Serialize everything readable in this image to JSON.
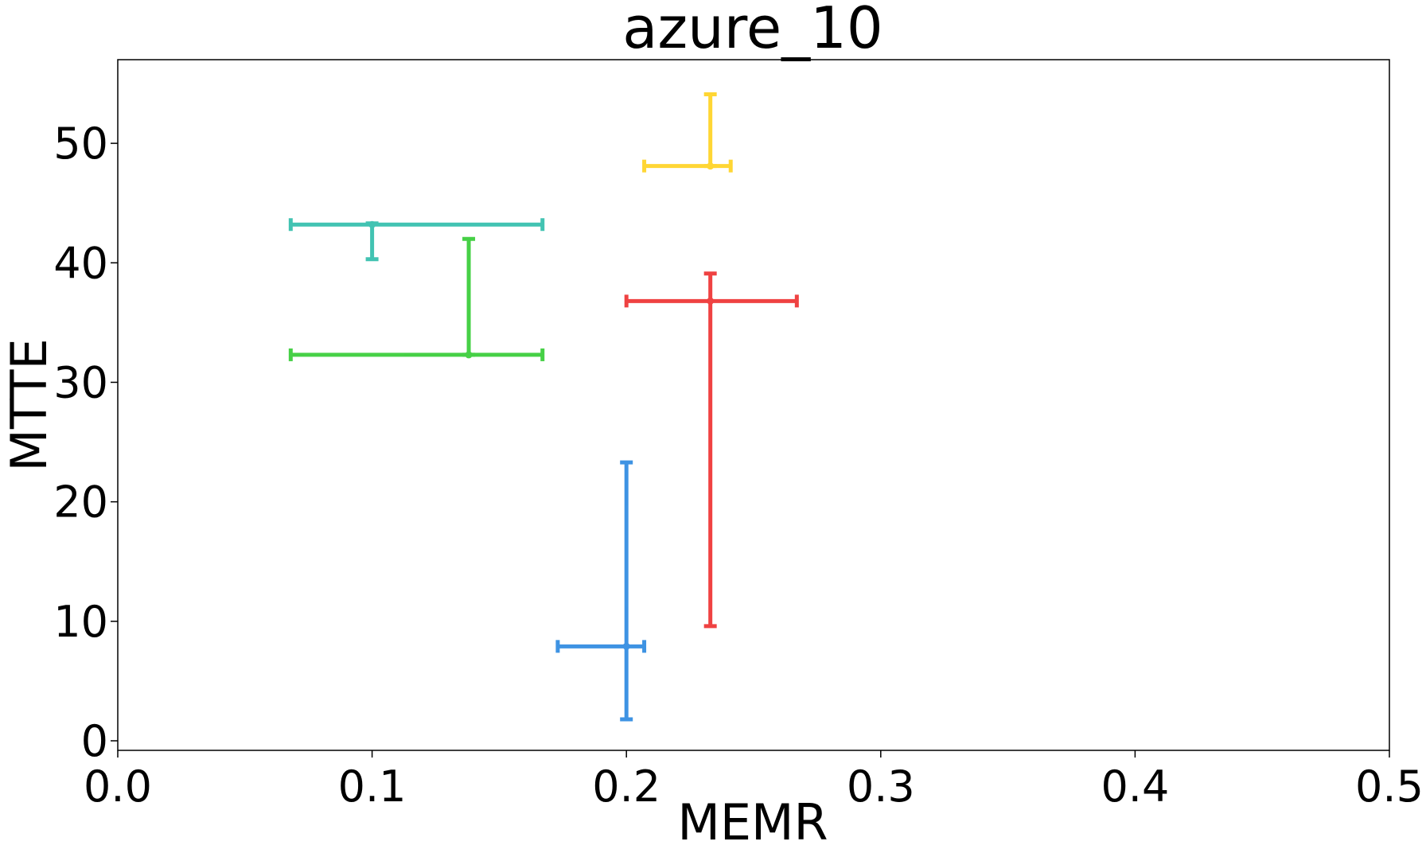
{
  "chart_data": {
    "type": "scatter",
    "title": "azure_10",
    "xlabel": "MEMR",
    "ylabel": "MTTE",
    "xlim": [
      0.0,
      0.5
    ],
    "ylim": [
      -0.8,
      57.0
    ],
    "xticks": [
      "0.0",
      "0.1",
      "0.2",
      "0.3",
      "0.4",
      "0.5"
    ],
    "yticks": [
      "0",
      "10",
      "20",
      "30",
      "40",
      "50"
    ],
    "grid": false,
    "series": [
      {
        "color": "#2ebdaa",
        "x": 0.1,
        "y": 43.2,
        "xerr": [
          0.068,
          0.167
        ],
        "yerr": [
          40.3,
          43.3
        ]
      },
      {
        "color": "#33cc33",
        "x": 0.138,
        "y": 32.3,
        "xerr": [
          0.068,
          0.167
        ],
        "yerr": [
          32.3,
          42.0
        ]
      },
      {
        "color": "#ffd21f",
        "x": 0.233,
        "y": 48.1,
        "xerr": [
          0.207,
          0.241
        ],
        "yerr": [
          48.1,
          54.1
        ]
      },
      {
        "color": "#ee2e2e",
        "x": 0.233,
        "y": 36.8,
        "xerr": [
          0.2,
          0.267
        ],
        "yerr": [
          9.6,
          39.1
        ]
      },
      {
        "color": "#2a88e0",
        "x": 0.2,
        "y": 7.9,
        "xerr": [
          0.173,
          0.207
        ],
        "yerr": [
          1.8,
          23.3
        ]
      }
    ]
  }
}
